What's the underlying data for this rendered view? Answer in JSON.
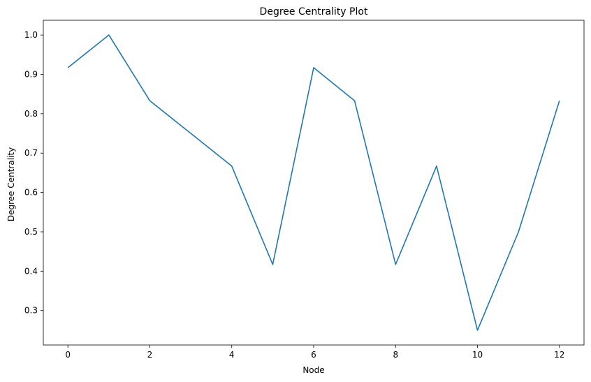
{
  "chart_data": {
    "type": "line",
    "title": "Degree Centrality Plot",
    "xlabel": "Node",
    "ylabel": "Degree Centrality",
    "xlim": [
      -0.6,
      12.6
    ],
    "ylim": [
      0.2125,
      1.0375
    ],
    "xticks": [
      0,
      2,
      4,
      6,
      8,
      10,
      12
    ],
    "yticks": [
      0.3,
      0.4,
      0.5,
      0.6,
      0.7,
      0.8,
      0.9,
      1.0
    ],
    "grid": false,
    "series": [
      {
        "color": "#1f77b4",
        "x": [
          0,
          1,
          2,
          3,
          4,
          5,
          6,
          7,
          8,
          9,
          10,
          11,
          12
        ],
        "y": [
          0.917,
          1.0,
          0.833,
          0.75,
          0.667,
          0.417,
          0.917,
          0.833,
          0.417,
          0.667,
          0.25,
          0.5,
          0.833
        ]
      }
    ]
  }
}
